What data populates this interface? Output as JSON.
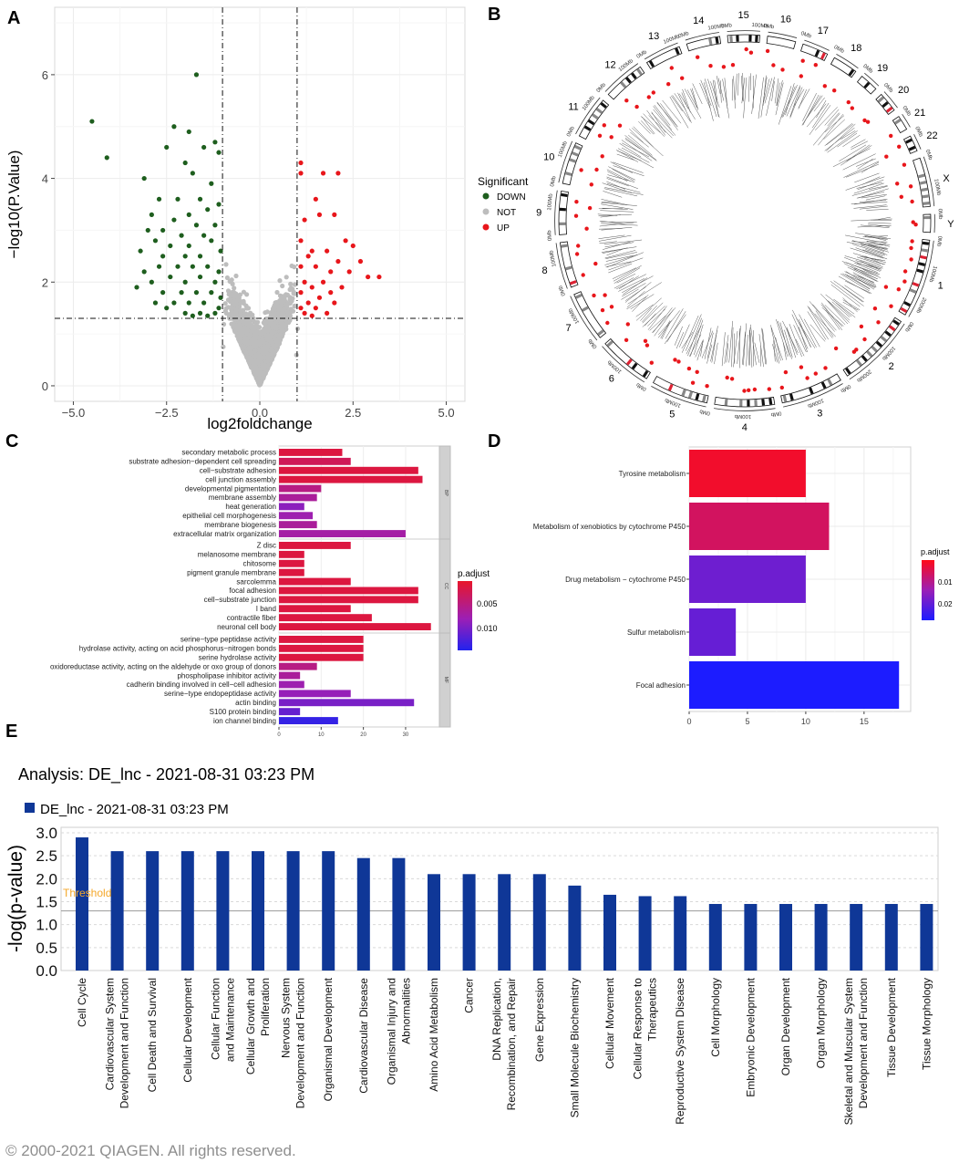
{
  "panel_letters": {
    "a": "A",
    "b": "B",
    "c": "C",
    "d": "D",
    "e": "E"
  },
  "chart_data": [
    {
      "panel": "A",
      "type": "scatter",
      "title": "",
      "xlabel": "log2foldchange",
      "ylabel": "−log10(P.Value)",
      "xlim": [
        -5.5,
        5.5
      ],
      "ylim": [
        -0.3,
        7.3
      ],
      "xticks": [
        -5.0,
        -2.5,
        0.0,
        2.5,
        5.0
      ],
      "xtick_labels": [
        "−5.0",
        "−2.5",
        "0.0",
        "2.5",
        "5.0"
      ],
      "yticks": [
        0,
        2,
        4,
        6
      ],
      "thresholds": {
        "x": [
          -1,
          1
        ],
        "y": 1.3
      },
      "legend": {
        "title": "Significant",
        "entries": [
          "DOWN",
          "NOT",
          "UP"
        ],
        "colors": [
          "#1e5e1e",
          "#bdbdbd",
          "#e8161b"
        ],
        "placement": "right"
      },
      "series": [
        {
          "name": "DOWN",
          "color": "#1e5e1e",
          "points": [
            [
              -4.5,
              5.1
            ],
            [
              -4.1,
              4.4
            ],
            [
              -1.7,
              6.0
            ],
            [
              -2.3,
              5.0
            ],
            [
              -1.9,
              4.9
            ],
            [
              -1.2,
              4.7
            ],
            [
              -2.5,
              4.6
            ],
            [
              -1.5,
              4.6
            ],
            [
              -1.1,
              4.5
            ],
            [
              -2.0,
              4.3
            ],
            [
              -3.1,
              4.0
            ],
            [
              -1.8,
              4.1
            ],
            [
              -2.7,
              3.6
            ],
            [
              -1.3,
              3.9
            ],
            [
              -2.2,
              3.6
            ],
            [
              -1.6,
              3.6
            ],
            [
              -1.1,
              3.5
            ],
            [
              -2.9,
              3.3
            ],
            [
              -1.9,
              3.3
            ],
            [
              -1.4,
              3.4
            ],
            [
              -2.3,
              3.2
            ],
            [
              -3.0,
              3.0
            ],
            [
              -2.6,
              3.0
            ],
            [
              -1.7,
              3.1
            ],
            [
              -1.2,
              3.1
            ],
            [
              -2.1,
              2.9
            ],
            [
              -1.5,
              2.9
            ],
            [
              -3.2,
              2.6
            ],
            [
              -2.8,
              2.8
            ],
            [
              -2.4,
              2.7
            ],
            [
              -1.9,
              2.7
            ],
            [
              -1.3,
              2.8
            ],
            [
              -1.05,
              2.6
            ],
            [
              -2.6,
              2.5
            ],
            [
              -2.0,
              2.5
            ],
            [
              -1.6,
              2.5
            ],
            [
              -3.1,
              2.2
            ],
            [
              -2.7,
              2.3
            ],
            [
              -2.2,
              2.3
            ],
            [
              -1.8,
              2.3
            ],
            [
              -1.4,
              2.3
            ],
            [
              -1.1,
              2.2
            ],
            [
              -2.9,
              2.0
            ],
            [
              -2.4,
              2.1
            ],
            [
              -2.0,
              2.0
            ],
            [
              -1.6,
              2.1
            ],
            [
              -1.2,
              2.0
            ],
            [
              -3.3,
              1.9
            ],
            [
              -2.6,
              1.8
            ],
            [
              -2.1,
              1.8
            ],
            [
              -1.7,
              1.8
            ],
            [
              -1.3,
              1.8
            ],
            [
              -1.05,
              1.7
            ],
            [
              -2.8,
              1.6
            ],
            [
              -2.3,
              1.6
            ],
            [
              -1.9,
              1.6
            ],
            [
              -1.5,
              1.6
            ],
            [
              -1.1,
              1.5
            ],
            [
              -2.5,
              1.5
            ],
            [
              -2.0,
              1.4
            ],
            [
              -1.6,
              1.4
            ],
            [
              -1.2,
              1.4
            ],
            [
              -1.8,
              1.35
            ],
            [
              -1.4,
              1.35
            ]
          ]
        },
        {
          "name": "UP",
          "color": "#e8161b",
          "points": [
            [
              1.1,
              4.3
            ],
            [
              1.1,
              4.1
            ],
            [
              1.7,
              4.1
            ],
            [
              2.1,
              4.1
            ],
            [
              1.5,
              3.6
            ],
            [
              2.0,
              3.3
            ],
            [
              1.6,
              3.3
            ],
            [
              1.2,
              3.2
            ],
            [
              2.3,
              2.8
            ],
            [
              2.5,
              2.7
            ],
            [
              1.1,
              2.8
            ],
            [
              1.4,
              2.6
            ],
            [
              1.8,
              2.6
            ],
            [
              2.7,
              2.4
            ],
            [
              2.1,
              2.4
            ],
            [
              1.3,
              2.5
            ],
            [
              2.4,
              2.2
            ],
            [
              1.9,
              2.2
            ],
            [
              1.5,
              2.3
            ],
            [
              1.1,
              2.3
            ],
            [
              3.2,
              2.1
            ],
            [
              2.9,
              2.1
            ],
            [
              1.7,
              2.0
            ],
            [
              1.2,
              2.0
            ],
            [
              2.2,
              1.9
            ],
            [
              1.4,
              1.9
            ],
            [
              1.9,
              1.8
            ],
            [
              1.1,
              1.8
            ],
            [
              1.6,
              1.7
            ],
            [
              1.3,
              1.6
            ],
            [
              2.0,
              1.6
            ],
            [
              1.1,
              1.5
            ],
            [
              1.5,
              1.5
            ],
            [
              1.8,
              1.4
            ],
            [
              1.2,
              1.4
            ],
            [
              1.4,
              1.35
            ]
          ]
        }
      ]
    },
    {
      "panel": "B",
      "type": "circos",
      "chromosomes": [
        "1",
        "2",
        "3",
        "4",
        "5",
        "6",
        "7",
        "8",
        "9",
        "10",
        "11",
        "12",
        "13",
        "14",
        "15",
        "16",
        "17",
        "18",
        "19",
        "20",
        "21",
        "22",
        "X",
        "Y"
      ],
      "chrom_sizes": [
        249,
        242,
        198,
        190,
        181,
        171,
        159,
        145,
        138,
        134,
        135,
        133,
        114,
        107,
        102,
        90,
        83,
        80,
        59,
        64,
        47,
        51,
        156,
        57
      ],
      "scale_labels": [
        "0Mb",
        "100Mb",
        "200Mb"
      ],
      "track_colors": {
        "points": "#e8161b",
        "ideogram": "#000000"
      }
    },
    {
      "panel": "C",
      "type": "bar",
      "orientation": "horizontal",
      "xticks": [
        0,
        10,
        20,
        30
      ],
      "color_legend": {
        "title": "p.adjust",
        "ticks": [
          "0.005",
          "0.010"
        ],
        "gradient": [
          "#e8162a",
          "#9b1fb6",
          "#2222ee"
        ]
      },
      "facets": [
        {
          "name": "BP",
          "categories": [
            "secondary metabolic process",
            "substrate adhesion−dependent cell spreading",
            "cell−substrate adhesion",
            "cell junction assembly",
            "developmental pigmentation",
            "membrane assembly",
            "heat generation",
            "epithelial cell morphogenesis",
            "membrane biogenesis",
            "extracellular matrix organization"
          ],
          "values": [
            15,
            17,
            33,
            34,
            10,
            9,
            6,
            8,
            9,
            30
          ],
          "p_adjust": [
            0.001,
            0.002,
            0.001,
            0.001,
            0.004,
            0.005,
            0.007,
            0.006,
            0.005,
            0.0055
          ]
        },
        {
          "name": "CC",
          "categories": [
            "Z disc",
            "melanosome membrane",
            "chitosome",
            "pigment granule membrane",
            "sarcolemma",
            "focal adhesion",
            "cell−substrate junction",
            "I band",
            "contractile fiber",
            "neuronal cell body"
          ],
          "values": [
            17,
            6,
            6,
            6,
            17,
            33,
            33,
            17,
            22,
            36
          ],
          "p_adjust": [
            0.001,
            0.001,
            0.001,
            0.001,
            0.001,
            0.001,
            0.001,
            0.001,
            0.001,
            0.001
          ]
        },
        {
          "name": "MF",
          "categories": [
            "serine−type peptidase activity",
            "hydrolase activity, acting on acid phosphorus−nitrogen bonds",
            "serine hydrolase activity",
            "oxidoreductase activity, acting on the aldehyde or oxo group of donors",
            "phospholipase inhibitor activity",
            "cadherin binding involved in cell−cell adhesion",
            "serine−type endopeptidase activity",
            "actin binding",
            "S100 protein binding",
            "ion channel binding"
          ],
          "values": [
            20,
            20,
            20,
            9,
            5,
            6,
            17,
            32,
            5,
            14
          ],
          "p_adjust": [
            0.001,
            0.001,
            0.001,
            0.004,
            0.005,
            0.006,
            0.0065,
            0.008,
            0.009,
            0.0115
          ]
        }
      ]
    },
    {
      "panel": "D",
      "type": "bar",
      "orientation": "horizontal",
      "categories": [
        "Tyrosine metabolism",
        "Metabolism of xenobiotics by cytochrome P450",
        "Drug metabolism − cytochrome P450",
        "Sulfur metabolism",
        "Focal adhesion"
      ],
      "values": [
        10,
        12,
        10,
        4,
        18
      ],
      "p_adjust": [
        0.002,
        0.007,
        0.021,
        0.022,
        0.031
      ],
      "xticks": [
        0,
        5,
        10,
        15
      ],
      "xlim": [
        0,
        19
      ],
      "color_legend": {
        "title": "p.adjust",
        "ticks": [
          "0.01",
          "0.02"
        ],
        "gradient": [
          "#ff0a18",
          "#9b1fb6",
          "#1c1cff"
        ]
      }
    },
    {
      "panel": "E",
      "type": "bar",
      "title": "Analysis: DE_lnc - 2021-08-31 03:23 PM",
      "legend": [
        "DE_lnc - 2021-08-31 03:23 PM"
      ],
      "ylabel": "-log(p-value)",
      "ylim": [
        0,
        3.0
      ],
      "yticks": [
        "0.0",
        "0.5",
        "1.0",
        "1.5",
        "2.0",
        "2.5",
        "3.0"
      ],
      "threshold": {
        "value": 1.3,
        "label": "Threshold"
      },
      "bar_color": "#0f3797",
      "categories": [
        "Cell Cycle",
        "Cardiovascular System Development and Function",
        "Cell Death and Survival",
        "Cellular Development",
        "Cellular Function and Maintenance",
        "Cellular Growth and Proliferation",
        "Nervous System Development and Function",
        "Organismal Development",
        "Cardiovascular Disease",
        "Organismal Injury and Abnormalities",
        "Amino Acid Metabolism",
        "Cancer",
        "DNA Replication, Recombination, and Repair",
        "Gene Expression",
        "Small Molecule Biochemistry",
        "Cellular Movement",
        "Cellular Response to Therapeutics",
        "Reproductive System Disease",
        "Cell Morphology",
        "Embryonic Development",
        "Organ Development",
        "Organ Morphology",
        "Skeletal and Muscular System Development and Function",
        "Tissue Development",
        "Tissue Morphology"
      ],
      "values": [
        2.9,
        2.6,
        2.6,
        2.6,
        2.6,
        2.6,
        2.6,
        2.6,
        2.45,
        2.45,
        2.1,
        2.1,
        2.1,
        2.1,
        1.85,
        1.65,
        1.62,
        1.62,
        1.45,
        1.45,
        1.45,
        1.45,
        1.45,
        1.45,
        1.45
      ],
      "footer": "© 2000-2021 QIAGEN. All rights reserved."
    }
  ]
}
